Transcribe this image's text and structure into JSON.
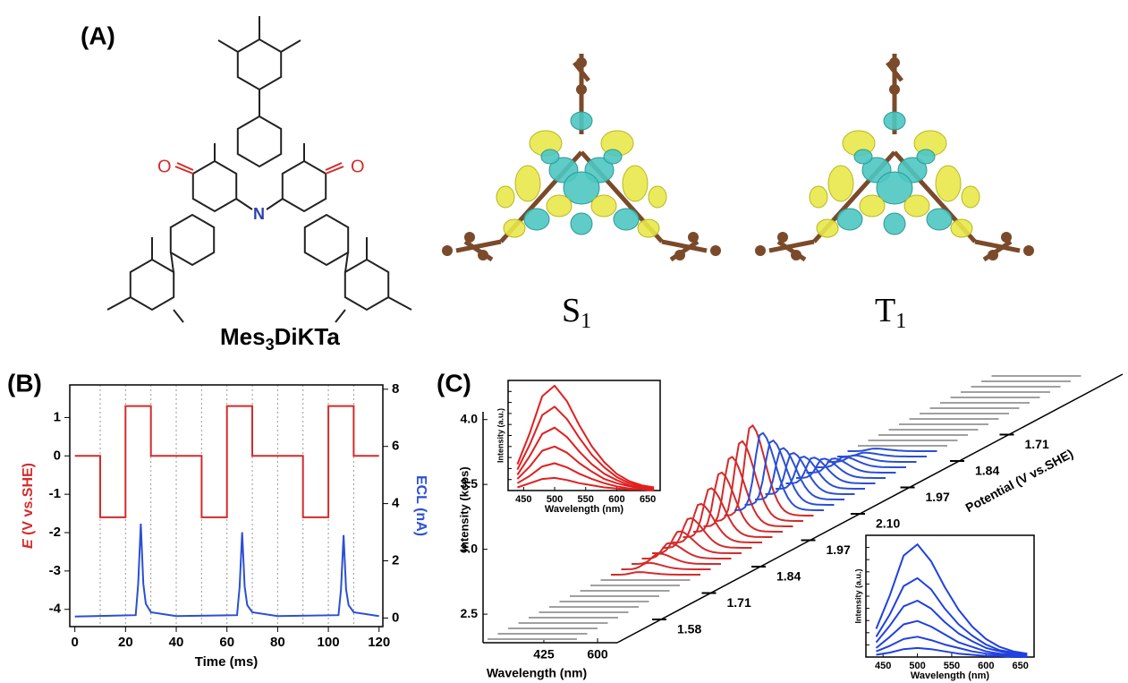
{
  "panel_labels": [
    "(A)",
    "(B)",
    "(C)"
  ],
  "molecule": {
    "name_prefix": "Mes",
    "name_subscript": "3",
    "name_suffix": "DiKTa",
    "atom_o": "O",
    "atom_n": "N"
  },
  "states": [
    {
      "letter": "S",
      "subscript": "1"
    },
    {
      "letter": "T",
      "subscript": "1"
    }
  ],
  "chart_data": [
    {
      "type": "line",
      "xlabel": "Time (ms)",
      "ylabel_symbol": "E",
      "ylabel": " (V vs.SHE)",
      "y2label": "ECL (nA)",
      "xlim": [
        -2,
        121.5
      ],
      "xticks": [
        0,
        20,
        40,
        60,
        80,
        100,
        120
      ],
      "ylim": [
        -4.45,
        1.85
      ],
      "yticks": [
        -4,
        -3,
        -2,
        -1,
        0,
        1
      ],
      "y2lim": [
        -0.3,
        8.15
      ],
      "y2ticks": [
        0,
        2,
        4,
        6,
        8
      ],
      "grid_x": [
        10,
        20,
        30,
        40,
        50,
        60,
        70,
        80,
        90,
        100,
        110
      ],
      "series": [
        {
          "color": "#d42b2b",
          "axis": "y",
          "x": [
            0,
            10,
            10,
            20,
            20,
            30,
            30,
            50,
            50,
            60,
            60,
            70,
            70,
            90,
            90,
            100,
            100,
            110,
            110,
            120
          ],
          "values": [
            0,
            0,
            -1.6,
            -1.6,
            1.3,
            1.3,
            0,
            0,
            -1.6,
            -1.6,
            1.3,
            1.3,
            0,
            0,
            -1.6,
            -1.6,
            1.3,
            1.3,
            0,
            0
          ]
        },
        {
          "color": "#2b4fd4",
          "axis": "y2",
          "x": [
            0,
            24,
            25,
            26,
            27,
            28,
            30,
            40,
            64,
            65,
            66,
            67,
            68,
            70,
            80,
            104,
            105,
            106,
            107,
            108,
            110,
            120
          ],
          "values": [
            0.05,
            0.1,
            1.2,
            3.3,
            1.2,
            0.5,
            0.2,
            0.07,
            0.1,
            1.1,
            3.0,
            1.1,
            0.45,
            0.2,
            0.07,
            0.1,
            1.0,
            2.9,
            1.0,
            0.45,
            0.2,
            0.07
          ]
        }
      ]
    },
    {
      "type": "waterfall",
      "ylabel": "Intensity (kcps)",
      "xlabel": "Wavelength (nm)",
      "xlim": [
        227,
        664
      ],
      "xticks": [
        425,
        600
      ],
      "ylim": [
        2.28,
        4.06
      ],
      "yticks": [
        2.5,
        {
          "value": 3.0,
          "label": "3.0"
        },
        3.5,
        {
          "value": 4.0,
          "label": "4.0"
        }
      ],
      "potential_label": "Potential (V vs.SHE)",
      "potential_ticks": [
        "1.58",
        "1.71",
        "1.84",
        "1.97",
        "2.10",
        "1.97",
        "1.84",
        "1.71"
      ],
      "series": [
        {
          "color": "#a0a0a0",
          "values": [
            0,
            0,
            0,
            0,
            0,
            0,
            0,
            0,
            0,
            0,
            0,
            0
          ]
        },
        {
          "color": "#d42b2b",
          "values": [
            0.02,
            0.05,
            0.08,
            0.12,
            0.17,
            0.23,
            0.3,
            0.38,
            0.46,
            0.54,
            0.62,
            0.7
          ]
        },
        {
          "color": "#2b4fd4",
          "values": [
            0.6,
            0.5,
            0.4,
            0.32,
            0.25,
            0.2,
            0.15,
            0.11,
            0.08,
            0.05,
            0.03,
            0.02
          ]
        },
        {
          "color": "#a0a0a0",
          "values": [
            0,
            0,
            0,
            0,
            0,
            0,
            0,
            0,
            0,
            0,
            0,
            0,
            0,
            0
          ]
        }
      ]
    },
    {
      "type": "spectra",
      "xlabel": "Wavelength (nm)",
      "ylabel": "Intensity (a.u.)",
      "xlim": [
        425,
        670
      ],
      "xticks": [
        450,
        500,
        550,
        600,
        650
      ],
      "ylim": [
        0,
        1.05
      ],
      "x": [
        440,
        460,
        480,
        500,
        520,
        540,
        560,
        580,
        600,
        620,
        640,
        660
      ],
      "series": [
        {
          "color": "#e02020",
          "values": [
            0.25,
            0.55,
            0.9,
            1,
            0.85,
            0.62,
            0.42,
            0.27,
            0.16,
            0.09,
            0.05,
            0.03
          ]
        },
        {
          "color": "#e02020",
          "values": [
            0.2,
            0.44,
            0.72,
            0.8,
            0.68,
            0.5,
            0.34,
            0.22,
            0.13,
            0.07,
            0.04,
            0.02
          ]
        },
        {
          "color": "#e02020",
          "values": [
            0.15,
            0.33,
            0.54,
            0.6,
            0.51,
            0.37,
            0.25,
            0.16,
            0.1,
            0.05,
            0.03,
            0.02
          ]
        },
        {
          "color": "#e02020",
          "values": [
            0.11,
            0.23,
            0.38,
            0.42,
            0.36,
            0.26,
            0.18,
            0.11,
            0.07,
            0.04,
            0.02,
            0.01
          ]
        },
        {
          "color": "#e02020",
          "values": [
            0.07,
            0.14,
            0.23,
            0.26,
            0.22,
            0.16,
            0.11,
            0.07,
            0.04,
            0.02,
            0.01,
            0.01
          ]
        },
        {
          "color": "#e02020",
          "values": [
            0.03,
            0.07,
            0.11,
            0.12,
            0.1,
            0.07,
            0.05,
            0.03,
            0.02,
            0.01,
            0.01,
            0
          ]
        }
      ]
    },
    {
      "type": "spectra",
      "xlabel": "Wavelength (nm)",
      "ylabel": "Intensity (a.u.)",
      "xlim": [
        425,
        670
      ],
      "xticks": [
        450,
        500,
        550,
        600,
        650
      ],
      "ylim": [
        0,
        1.08
      ],
      "x": [
        440,
        460,
        480,
        500,
        520,
        540,
        560,
        580,
        600,
        620,
        640,
        660
      ],
      "series": [
        {
          "color": "#2040e0",
          "values": [
            0.25,
            0.55,
            0.9,
            1,
            0.85,
            0.62,
            0.42,
            0.27,
            0.16,
            0.09,
            0.05,
            0.03
          ]
        },
        {
          "color": "#2040e0",
          "values": [
            0.18,
            0.38,
            0.63,
            0.7,
            0.6,
            0.43,
            0.29,
            0.19,
            0.11,
            0.06,
            0.04,
            0.02
          ]
        },
        {
          "color": "#2040e0",
          "values": [
            0.13,
            0.28,
            0.45,
            0.5,
            0.43,
            0.31,
            0.21,
            0.14,
            0.08,
            0.05,
            0.03,
            0.02
          ]
        },
        {
          "color": "#2040e0",
          "values": [
            0.08,
            0.18,
            0.29,
            0.32,
            0.27,
            0.2,
            0.13,
            0.09,
            0.05,
            0.03,
            0.02,
            0.01
          ]
        },
        {
          "color": "#2040e0",
          "values": [
            0.05,
            0.1,
            0.16,
            0.18,
            0.15,
            0.11,
            0.08,
            0.05,
            0.03,
            0.02,
            0.01,
            0.01
          ]
        },
        {
          "color": "#2040e0",
          "values": [
            0.02,
            0.04,
            0.07,
            0.08,
            0.07,
            0.05,
            0.03,
            0.02,
            0.01,
            0.01,
            0,
            0
          ]
        }
      ]
    }
  ]
}
